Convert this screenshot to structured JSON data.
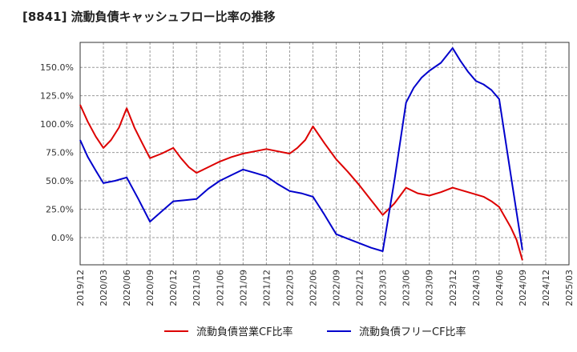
{
  "chart_data": {
    "type": "line",
    "title": "[8841]  流動負債キャッシュフロー比率の推移",
    "x": [
      "2019/12",
      "2020/03",
      "2020/06",
      "2020/09",
      "2020/12",
      "2021/03",
      "2021/06",
      "2021/09",
      "2021/12",
      "2022/03",
      "2022/06",
      "2022/09",
      "2022/12",
      "2023/03",
      "2023/06",
      "2023/09",
      "2023/12",
      "2024/03",
      "2024/06",
      "2024/09",
      "2024/12",
      "2025/03"
    ],
    "ylim": [
      -24,
      172
    ],
    "yticks": [
      0,
      25,
      50,
      75,
      100,
      125,
      150
    ],
    "ytick_labels": [
      "0.0%",
      "25.0%",
      "50.0%",
      "75.0%",
      "100.0%",
      "125.0%",
      "150.0%"
    ],
    "grid": true,
    "legend_position": "bottom",
    "series": [
      {
        "name": "流動負債営業CF比率",
        "color": "#dd0000",
        "points": [
          [
            0,
            117
          ],
          [
            0.33,
            102
          ],
          [
            0.67,
            89
          ],
          [
            1,
            79
          ],
          [
            1.33,
            86
          ],
          [
            1.67,
            97
          ],
          [
            2,
            114
          ],
          [
            2.33,
            97
          ],
          [
            2.67,
            83
          ],
          [
            3,
            70
          ],
          [
            3.5,
            74
          ],
          [
            4,
            79
          ],
          [
            4.33,
            70
          ],
          [
            4.67,
            62
          ],
          [
            5,
            57
          ],
          [
            5.5,
            62
          ],
          [
            6,
            67
          ],
          [
            6.5,
            71
          ],
          [
            7,
            74
          ],
          [
            7.5,
            76
          ],
          [
            8,
            78
          ],
          [
            8.5,
            76
          ],
          [
            9,
            74
          ],
          [
            9.33,
            79
          ],
          [
            9.67,
            86
          ],
          [
            10,
            98
          ],
          [
            10.5,
            83
          ],
          [
            11,
            69
          ],
          [
            11.5,
            58
          ],
          [
            12,
            46
          ],
          [
            12.5,
            33
          ],
          [
            13,
            20
          ],
          [
            13.5,
            30
          ],
          [
            14,
            44
          ],
          [
            14.5,
            39
          ],
          [
            15,
            37
          ],
          [
            15.5,
            40
          ],
          [
            16,
            44
          ],
          [
            16.5,
            41
          ],
          [
            17,
            38
          ],
          [
            17.33,
            36
          ],
          [
            17.67,
            32
          ],
          [
            18,
            27
          ],
          [
            18.5,
            9
          ],
          [
            18.75,
            -2
          ],
          [
            19,
            -20
          ]
        ]
      },
      {
        "name": "流動負債フリーCF比率",
        "color": "#0000cc",
        "points": [
          [
            0,
            86
          ],
          [
            0.33,
            71
          ],
          [
            0.67,
            59
          ],
          [
            1,
            48
          ],
          [
            1.5,
            50
          ],
          [
            2,
            53
          ],
          [
            2.5,
            34
          ],
          [
            3,
            14
          ],
          [
            3.5,
            23
          ],
          [
            4,
            32
          ],
          [
            4.5,
            33
          ],
          [
            5,
            34
          ],
          [
            5.5,
            43
          ],
          [
            6,
            50
          ],
          [
            6.5,
            55
          ],
          [
            7,
            60
          ],
          [
            7.5,
            57
          ],
          [
            8,
            54
          ],
          [
            8.5,
            47
          ],
          [
            9,
            41
          ],
          [
            9.5,
            39
          ],
          [
            10,
            36
          ],
          [
            10.5,
            20
          ],
          [
            11,
            3
          ],
          [
            11.5,
            -1
          ],
          [
            12,
            -5
          ],
          [
            12.5,
            -9
          ],
          [
            13,
            -12
          ],
          [
            13.5,
            50
          ],
          [
            14,
            119
          ],
          [
            14.33,
            132
          ],
          [
            14.67,
            141
          ],
          [
            15,
            147
          ],
          [
            15.5,
            154
          ],
          [
            16,
            167
          ],
          [
            16.33,
            156
          ],
          [
            16.67,
            146
          ],
          [
            17,
            138
          ],
          [
            17.33,
            135
          ],
          [
            17.67,
            130
          ],
          [
            18,
            122
          ],
          [
            18.5,
            55
          ],
          [
            19,
            -11
          ]
        ]
      }
    ]
  }
}
